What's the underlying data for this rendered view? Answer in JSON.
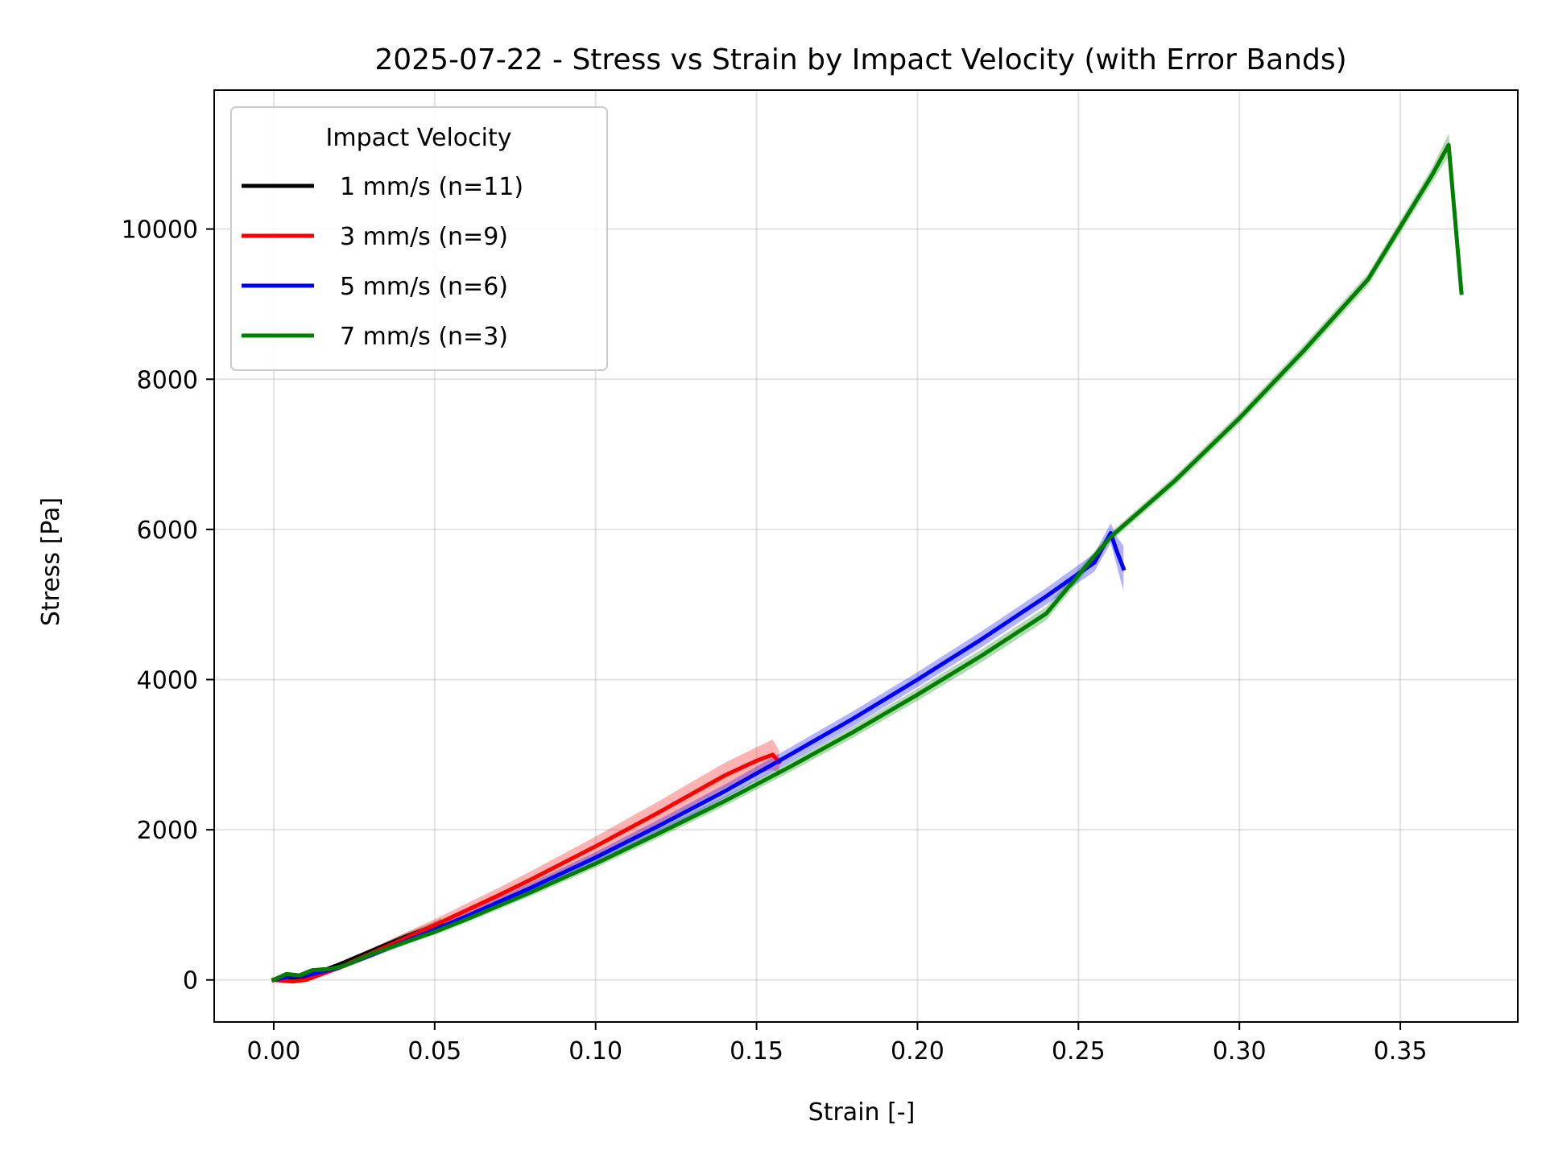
{
  "chart_data": {
    "type": "line",
    "title": "2025-07-22 - Stress vs Strain by Impact Velocity (with Error Bands)",
    "xlabel": "Strain [-]",
    "ylabel": "Stress [Pa]",
    "xlim": [
      -0.0185,
      0.3865
    ],
    "ylim": [
      -560,
      11850
    ],
    "xticks": [
      0.0,
      0.05,
      0.1,
      0.15,
      0.2,
      0.25,
      0.3,
      0.35
    ],
    "xtick_labels": [
      "0.00",
      "0.05",
      "0.10",
      "0.15",
      "0.20",
      "0.25",
      "0.30",
      "0.35"
    ],
    "yticks": [
      0,
      2000,
      4000,
      6000,
      8000,
      10000
    ],
    "ytick_labels": [
      "0",
      "2000",
      "4000",
      "6000",
      "8000",
      "10000"
    ],
    "grid": true,
    "legend": {
      "title": "Impact Velocity",
      "placement": "top-left"
    },
    "series": [
      {
        "name": "1 mm/s (n=11)",
        "color": "#000000",
        "x": [
          0.0,
          0.002,
          0.004,
          0.006,
          0.008,
          0.01,
          0.015,
          0.02,
          0.025,
          0.03,
          0.035,
          0.04,
          0.045,
          0.05,
          0.052
        ],
        "y": [
          0,
          40,
          30,
          20,
          30,
          50,
          120,
          200,
          290,
          380,
          470,
          560,
          640,
          720,
          760
        ],
        "err": [
          0,
          10,
          15,
          15,
          15,
          15,
          20,
          25,
          30,
          35,
          40,
          45,
          50,
          55,
          60
        ]
      },
      {
        "name": "3 mm/s (n=9)",
        "color": "#ff0000",
        "x": [
          0.0,
          0.003,
          0.006,
          0.01,
          0.015,
          0.02,
          0.03,
          0.04,
          0.05,
          0.06,
          0.07,
          0.08,
          0.09,
          0.1,
          0.11,
          0.12,
          0.13,
          0.14,
          0.15,
          0.155,
          0.157
        ],
        "y": [
          0,
          -10,
          -20,
          0,
          80,
          160,
          350,
          540,
          730,
          930,
          1130,
          1340,
          1560,
          1780,
          2010,
          2240,
          2480,
          2720,
          2920,
          3000,
          2900
        ],
        "err": [
          0,
          10,
          15,
          20,
          30,
          40,
          60,
          70,
          80,
          90,
          100,
          110,
          120,
          130,
          140,
          150,
          160,
          170,
          180,
          200,
          150
        ]
      },
      {
        "name": "5 mm/s (n=6)",
        "color": "#0000ff",
        "x": [
          0.0,
          0.005,
          0.01,
          0.02,
          0.03,
          0.04,
          0.05,
          0.06,
          0.08,
          0.1,
          0.12,
          0.14,
          0.16,
          0.18,
          0.2,
          0.22,
          0.24,
          0.255,
          0.26,
          0.262,
          0.264
        ],
        "y": [
          0,
          50,
          60,
          160,
          330,
          500,
          670,
          850,
          1230,
          1630,
          2060,
          2510,
          2990,
          3480,
          4000,
          4540,
          5110,
          5560,
          5950,
          5700,
          5480
        ],
        "err": [
          0,
          15,
          20,
          30,
          40,
          45,
          50,
          55,
          65,
          75,
          85,
          90,
          95,
          100,
          100,
          105,
          110,
          120,
          130,
          200,
          300
        ]
      },
      {
        "name": "7 mm/s (n=3)",
        "color": "#008000",
        "x": [
          0.0,
          0.004,
          0.008,
          0.012,
          0.018,
          0.022,
          0.03,
          0.04,
          0.05,
          0.06,
          0.08,
          0.1,
          0.12,
          0.14,
          0.16,
          0.18,
          0.2,
          0.22,
          0.24,
          0.26,
          0.28,
          0.3,
          0.32,
          0.34,
          0.355,
          0.36,
          0.365,
          0.369
        ],
        "y": [
          0,
          80,
          60,
          130,
          150,
          190,
          340,
          490,
          640,
          810,
          1170,
          1550,
          1960,
          2380,
          2830,
          3300,
          3800,
          4320,
          4880,
          5900,
          6650,
          7480,
          8380,
          9330,
          10380,
          10730,
          11120,
          9150
        ],
        "err": [
          0,
          15,
          15,
          20,
          20,
          25,
          30,
          35,
          40,
          45,
          50,
          55,
          60,
          65,
          70,
          75,
          80,
          85,
          90,
          60,
          65,
          70,
          75,
          80,
          90,
          100,
          150,
          100
        ]
      }
    ]
  }
}
